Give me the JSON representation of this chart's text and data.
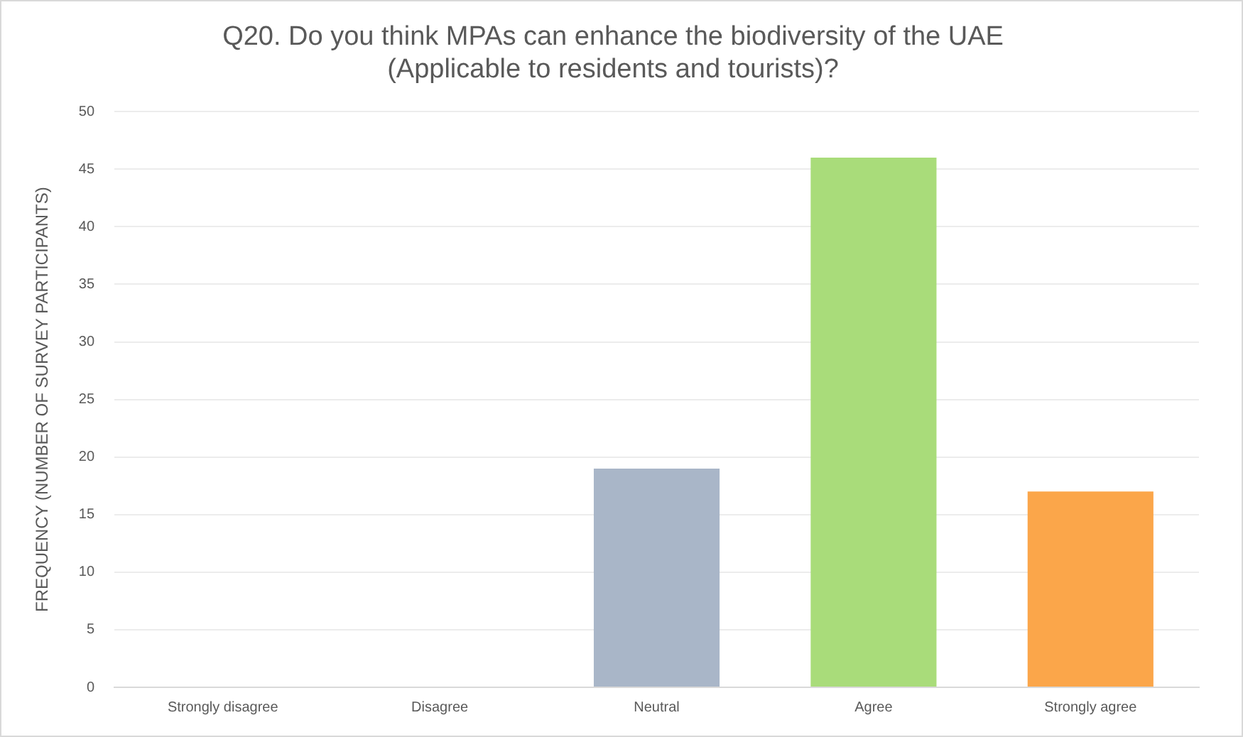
{
  "chart_data": {
    "type": "bar",
    "title": "Q20. Do you think MPAs can enhance the biodiversity of the UAE\n(Applicable to residents and tourists)?",
    "ylabel": "FREQUENCY (NUMBER OF SURVEY PARTICIPANTS)",
    "categories": [
      "Strongly disagree",
      "Disagree",
      "Neutral",
      "Agree",
      "Strongly agree"
    ],
    "values": [
      0,
      0,
      19,
      46,
      17
    ],
    "colors": [
      "#a9b6c8",
      "#a9b6c8",
      "#a9b6c8",
      "#a9dc7a",
      "#fba64a"
    ],
    "ylim": [
      0,
      50
    ],
    "yticks": [
      0,
      5,
      10,
      15,
      20,
      25,
      30,
      35,
      40,
      45,
      50
    ],
    "grid": "y"
  }
}
